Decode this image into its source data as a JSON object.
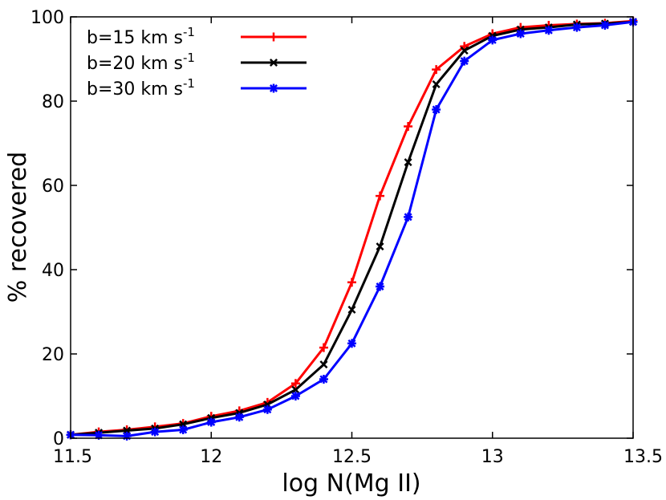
{
  "chart_data": {
    "type": "line",
    "xlabel": "log N(Mg II)",
    "ylabel": "% recovered",
    "xlim": [
      11.5,
      13.5
    ],
    "ylim": [
      0,
      100
    ],
    "xticks": [
      "11.5",
      "12",
      "12.5",
      "13",
      "13.5"
    ],
    "xtick_values": [
      11.5,
      12,
      12.5,
      13,
      13.5
    ],
    "yticks": [
      "0",
      "20",
      "40",
      "60",
      "80",
      "100"
    ],
    "ytick_values": [
      0,
      20,
      40,
      60,
      80,
      100
    ],
    "grid": false,
    "legend_position": "top-left",
    "x": [
      11.5,
      11.6,
      11.7,
      11.8,
      11.9,
      12.0,
      12.1,
      12.2,
      12.3,
      12.4,
      12.5,
      12.6,
      12.7,
      12.8,
      12.9,
      13.0,
      13.1,
      13.2,
      13.3,
      13.4,
      13.5
    ],
    "series": [
      {
        "name": "b=15 km s",
        "name_sup": "-1",
        "color": "#ff0000",
        "marker": "plus",
        "values": [
          0.8,
          1.5,
          2.0,
          2.7,
          3.5,
          5.2,
          6.5,
          8.5,
          13.0,
          21.5,
          37.0,
          57.5,
          74.0,
          87.5,
          93.0,
          96.0,
          97.5,
          98.0,
          98.3,
          98.5,
          99.0
        ]
      },
      {
        "name": "b=20 km s",
        "name_sup": "-1",
        "color": "#000000",
        "marker": "x",
        "values": [
          0.8,
          1.3,
          1.8,
          2.3,
          3.3,
          4.8,
          6.0,
          8.0,
          11.5,
          17.5,
          30.5,
          45.5,
          65.5,
          84.0,
          92.0,
          95.5,
          97.0,
          97.5,
          98.2,
          98.4,
          98.8
        ]
      },
      {
        "name": "b=30 km s",
        "name_sup": "-1",
        "color": "#0000ff",
        "marker": "star",
        "values": [
          0.8,
          0.7,
          0.5,
          1.5,
          2.0,
          3.8,
          5.0,
          6.8,
          10.0,
          14.0,
          22.5,
          36.0,
          52.5,
          78.0,
          89.5,
          94.5,
          96.0,
          96.8,
          97.5,
          98.0,
          98.8
        ]
      }
    ]
  }
}
